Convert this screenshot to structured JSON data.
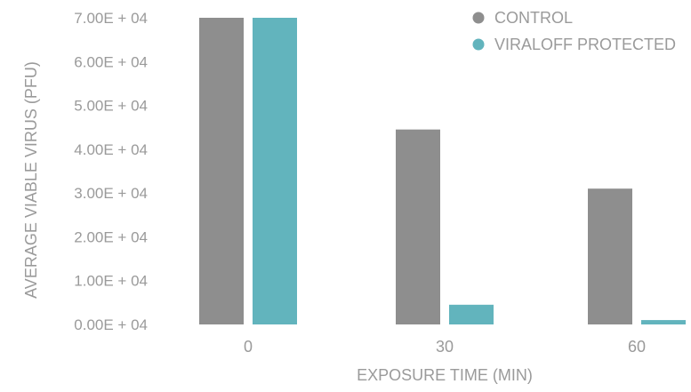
{
  "chart_data": {
    "type": "bar",
    "title": "",
    "xlabel": "EXPOSURE TIME (MIN)",
    "ylabel": "AVERAGE VIABLE VIRUS (PFU)",
    "categories": [
      "0",
      "30",
      "60"
    ],
    "ylim": [
      0,
      70000
    ],
    "yticks": [
      0,
      10000,
      20000,
      30000,
      40000,
      50000,
      60000,
      70000
    ],
    "ytick_labels": [
      "0.00E + 04",
      "1.00E + 04",
      "2.00E + 04",
      "3.00E + 04",
      "4.00E + 04",
      "5.00E + 04",
      "6.00E + 04",
      "7.00E + 04"
    ],
    "grid": false,
    "legend_position": "top-right",
    "series": [
      {
        "name": "CONTROL",
        "values": [
          70000,
          44500,
          31000
        ],
        "color": "#8e8e8e"
      },
      {
        "name": "VIRALOFF PROTECTED",
        "values": [
          70000,
          4500,
          1000
        ],
        "color": "#62b4bd"
      }
    ]
  }
}
